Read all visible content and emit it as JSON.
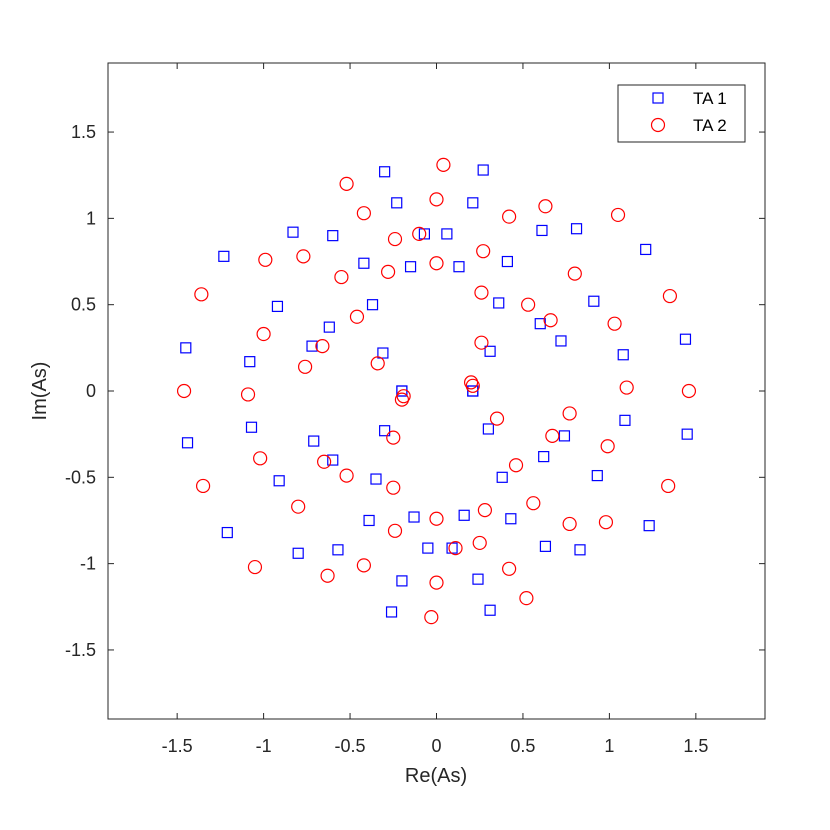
{
  "chart_data": {
    "type": "scatter",
    "xlabel": "Re(As)",
    "ylabel": "Im(As)",
    "xlim": [
      -1.9,
      1.9
    ],
    "ylim": [
      -1.9,
      1.9
    ],
    "xticks": [
      -1.5,
      -1,
      -0.5,
      0,
      0.5,
      1,
      1.5
    ],
    "yticks": [
      -1.5,
      -1,
      -0.5,
      0,
      0.5,
      1,
      1.5
    ],
    "xtick_labels": [
      "-1.5",
      "-1",
      "-0.5",
      "0",
      "0.5",
      "1",
      "1.5"
    ],
    "ytick_labels": [
      "-1.5",
      "-1",
      "-0.5",
      "0",
      "0.5",
      "1",
      "1.5"
    ],
    "grid": false,
    "legend_position": "top-right",
    "series": [
      {
        "name": "TA 1",
        "marker": "square",
        "color": "#0000ff",
        "points": [
          [
            -0.2,
            0.0
          ],
          [
            0.21,
            0.0
          ],
          [
            -0.2,
            0.0
          ],
          [
            0.21,
            0.0
          ],
          [
            -0.31,
            0.22
          ],
          [
            0.31,
            0.23
          ],
          [
            -0.3,
            -0.23
          ],
          [
            0.3,
            -0.22
          ],
          [
            -0.37,
            0.5
          ],
          [
            0.36,
            0.51
          ],
          [
            -0.35,
            -0.51
          ],
          [
            0.38,
            -0.5
          ],
          [
            -0.15,
            0.72
          ],
          [
            0.13,
            0.72
          ],
          [
            -0.13,
            -0.73
          ],
          [
            0.16,
            -0.72
          ],
          [
            -0.62,
            0.37
          ],
          [
            0.6,
            0.39
          ],
          [
            -0.6,
            -0.4
          ],
          [
            0.62,
            -0.38
          ],
          [
            -0.72,
            0.26
          ],
          [
            0.72,
            0.29
          ],
          [
            -0.71,
            -0.29
          ],
          [
            0.74,
            -0.26
          ],
          [
            -0.42,
            0.74
          ],
          [
            0.41,
            0.75
          ],
          [
            -0.39,
            -0.75
          ],
          [
            0.43,
            -0.74
          ],
          [
            -0.07,
            0.91
          ],
          [
            0.06,
            0.91
          ],
          [
            -0.05,
            -0.91
          ],
          [
            0.09,
            -0.91
          ],
          [
            -1.08,
            0.17
          ],
          [
            1.08,
            0.21
          ],
          [
            -1.07,
            -0.21
          ],
          [
            1.09,
            -0.17
          ],
          [
            -0.92,
            0.49
          ],
          [
            0.91,
            0.52
          ],
          [
            -0.91,
            -0.52
          ],
          [
            0.93,
            -0.49
          ],
          [
            -0.83,
            0.92
          ],
          [
            0.81,
            0.94
          ],
          [
            -0.8,
            -0.94
          ],
          [
            0.83,
            -0.92
          ],
          [
            -0.6,
            0.9
          ],
          [
            0.61,
            0.93
          ],
          [
            -0.57,
            -0.92
          ],
          [
            0.63,
            -0.9
          ],
          [
            -0.23,
            1.09
          ],
          [
            0.21,
            1.09
          ],
          [
            -0.2,
            -1.1
          ],
          [
            0.24,
            -1.09
          ],
          [
            -1.23,
            0.78
          ],
          [
            1.21,
            0.82
          ],
          [
            -1.21,
            -0.82
          ],
          [
            1.23,
            -0.78
          ],
          [
            -1.45,
            0.25
          ],
          [
            1.44,
            0.3
          ],
          [
            -1.44,
            -0.3
          ],
          [
            1.45,
            -0.25
          ],
          [
            -0.3,
            1.27
          ],
          [
            0.27,
            1.28
          ],
          [
            -0.26,
            -1.28
          ],
          [
            0.31,
            -1.27
          ]
        ]
      },
      {
        "name": "TA 2",
        "marker": "circle",
        "color": "#ff0000",
        "points": [
          [
            -0.19,
            -0.03
          ],
          [
            0.21,
            0.03
          ],
          [
            -0.2,
            -0.05
          ],
          [
            0.2,
            0.05
          ],
          [
            -0.34,
            0.16
          ],
          [
            0.26,
            0.28
          ],
          [
            -0.25,
            -0.27
          ],
          [
            0.35,
            -0.16
          ],
          [
            -0.28,
            0.69
          ],
          [
            0.26,
            0.57
          ],
          [
            -0.25,
            -0.56
          ],
          [
            0.46,
            -0.43
          ],
          [
            -0.46,
            0.43
          ],
          [
            0.53,
            0.5
          ],
          [
            -0.52,
            -0.49
          ],
          [
            0.56,
            -0.65
          ],
          [
            -0.76,
            0.14
          ],
          [
            0.66,
            0.41
          ],
          [
            -0.65,
            -0.41
          ],
          [
            0.77,
            -0.13
          ],
          [
            -0.66,
            0.26
          ],
          [
            0.8,
            0.68
          ],
          [
            -0.8,
            -0.67
          ],
          [
            0.67,
            -0.26
          ],
          [
            0.0,
            0.74
          ],
          [
            -0.24,
            0.88
          ],
          [
            0.0,
            -0.74
          ],
          [
            0.28,
            -0.69
          ],
          [
            -0.1,
            0.91
          ],
          [
            0.27,
            0.81
          ],
          [
            -0.24,
            -0.81
          ],
          [
            0.11,
            -0.91
          ],
          [
            -1.09,
            -0.02
          ],
          [
            1.03,
            0.39
          ],
          [
            -1.02,
            -0.39
          ],
          [
            1.1,
            0.02
          ],
          [
            -1.0,
            0.33
          ],
          [
            0.99,
            -0.32
          ],
          [
            -0.55,
            0.66
          ],
          [
            0.77,
            -0.77
          ],
          [
            -0.77,
            0.78
          ],
          [
            1.05,
            1.02
          ],
          [
            -1.05,
            -1.02
          ],
          [
            0.98,
            -0.76
          ],
          [
            -0.42,
            1.03
          ],
          [
            0.42,
            1.01
          ],
          [
            -0.42,
            -1.01
          ],
          [
            0.42,
            -1.03
          ],
          [
            0.0,
            1.11
          ],
          [
            0.63,
            1.07
          ],
          [
            0.0,
            -1.11
          ],
          [
            0.25,
            -0.88
          ],
          [
            -0.99,
            0.76
          ],
          [
            1.35,
            0.55
          ],
          [
            -1.35,
            -0.55
          ],
          [
            1.34,
            -0.55
          ],
          [
            -1.36,
            0.56
          ],
          [
            1.46,
            0.0
          ],
          [
            -1.46,
            0.0
          ],
          [
            -0.63,
            -1.07
          ],
          [
            -0.52,
            1.2
          ],
          [
            0.04,
            1.31
          ],
          [
            -0.03,
            -1.31
          ],
          [
            0.52,
            -1.2
          ]
        ]
      }
    ]
  }
}
